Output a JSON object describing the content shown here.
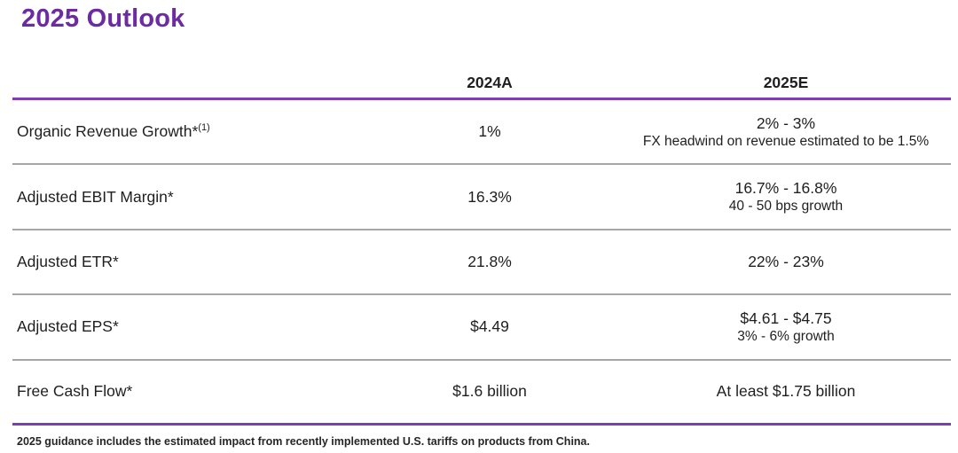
{
  "slide": {
    "title": "2025 Outlook",
    "footnote": "2025 guidance includes the estimated impact from recently implemented U.S. tariffs on products from China."
  },
  "colors": {
    "accent_purple": "#6C2BA2",
    "line_purple": "#7A3FB5",
    "line_gray": "#A6A6A6",
    "text": "#1f1f1f"
  },
  "table": {
    "columns": [
      "",
      "2024A",
      "2025E"
    ],
    "header": {
      "col_2024": "2024A",
      "col_2025": "2025E"
    },
    "rows": [
      {
        "label": "Organic Revenue Growth*",
        "label_sup": "(1)",
        "val_2024": "1%",
        "val_2025_main": "2% - 3%",
        "val_2025_sub": "FX headwind on revenue estimated to be 1.5%"
      },
      {
        "label": "Adjusted EBIT Margin*",
        "label_sup": "",
        "val_2024": "16.3%",
        "val_2025_main": "16.7% - 16.8%",
        "val_2025_sub": "40 - 50 bps growth"
      },
      {
        "label": "Adjusted ETR*",
        "label_sup": "",
        "val_2024": "21.8%",
        "val_2025_main": "22% - 23%",
        "val_2025_sub": ""
      },
      {
        "label": "Adjusted EPS*",
        "label_sup": "",
        "val_2024": "$4.49",
        "val_2025_main": "$4.61 - $4.75",
        "val_2025_sub": "3% - 6% growth"
      },
      {
        "label": "Free Cash Flow*",
        "label_sup": "",
        "val_2024": "$1.6 billion",
        "val_2025_main": "At least $1.75 billion",
        "val_2025_sub": ""
      }
    ]
  }
}
